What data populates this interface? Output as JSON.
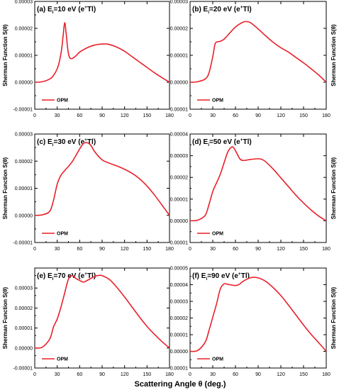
{
  "figure": {
    "xlabel": "Scattering Angle θ (deg.)",
    "ylabel": "Sherman Function S(θ)"
  },
  "chart_data": [
    {
      "type": "line",
      "panel": "a",
      "title_prefix": "(a) E",
      "title_sub": "i",
      "title_mid": "=10 eV (e",
      "title_sup": "+",
      "title_end": "Tl)",
      "legend": "OPM",
      "series_color": "#e8202a",
      "xlim": [
        0,
        180
      ],
      "ylim": [
        -1e-05,
        3e-05
      ],
      "xticks": [
        "0",
        "30",
        "60",
        "90",
        "120",
        "150",
        "180"
      ],
      "yticks": [
        "-0.00001",
        "0.00000",
        "0.00001",
        "0.00002",
        "0.00003"
      ],
      "ylabel_side": "left",
      "x": [
        0,
        10,
        20,
        25,
        30,
        33,
        36,
        38,
        40,
        42,
        44,
        46,
        48,
        50,
        55,
        60,
        70,
        80,
        90,
        95,
        100,
        110,
        120,
        130,
        140,
        150,
        160,
        170,
        180
      ],
      "y": [
        0.0,
        2e-07,
        1.2e-06,
        2.5e-06,
        5e-06,
        7.8e-06,
        1.25e-05,
        1.75e-05,
        2.21e-05,
        1.8e-05,
        1.25e-05,
        9.5e-06,
        8.8e-06,
        8.8e-06,
        9.8e-06,
        1.12e-05,
        1.28e-05,
        1.38e-05,
        1.42e-05,
        1.42e-05,
        1.4e-05,
        1.3e-05,
        1.15e-05,
        9.5e-06,
        7.5e-06,
        5.5e-06,
        3.5e-06,
        1.7e-06,
        0.0
      ]
    },
    {
      "type": "line",
      "panel": "b",
      "title_prefix": "(b) E",
      "title_sub": "i",
      "title_mid": "=20 eV (e",
      "title_sup": "+",
      "title_end": "Tl)",
      "legend": "OPM",
      "series_color": "#e8202a",
      "xlim": [
        0,
        180
      ],
      "ylim": [
        -1e-05,
        3e-05
      ],
      "xticks": [
        "0",
        "30",
        "60",
        "90",
        "120",
        "150",
        "180"
      ],
      "yticks": [
        "-0.00001",
        "0.00000",
        "0.00001",
        "0.00002",
        "0.00003"
      ],
      "ylabel_side": "right",
      "x": [
        0,
        10,
        20,
        25,
        30,
        33,
        36,
        40,
        45,
        50,
        60,
        70,
        75,
        80,
        90,
        100,
        110,
        120,
        130,
        140,
        150,
        160,
        170,
        180
      ],
      "y": [
        0.0,
        2e-07,
        1.2e-06,
        3.5e-06,
        9.5e-06,
        1.42e-05,
        1.5e-05,
        1.52e-05,
        1.6e-05,
        1.75e-05,
        2.05e-05,
        2.23e-05,
        2.25e-05,
        2.21e-05,
        1.98e-05,
        1.72e-05,
        1.48e-05,
        1.28e-05,
        1.12e-05,
        9.2e-06,
        7.2e-06,
        5e-06,
        2.7e-06,
        0.0
      ]
    },
    {
      "type": "line",
      "panel": "c",
      "title_prefix": "(c) E",
      "title_sub": "i",
      "title_mid": "=30 eV (e",
      "title_sup": "+",
      "title_end": "Tl)",
      "legend": "OPM",
      "series_color": "#e8202a",
      "xlim": [
        0,
        180
      ],
      "ylim": [
        -1e-05,
        3e-05
      ],
      "xticks": [
        "0",
        "30",
        "60",
        "90",
        "120",
        "150",
        "180"
      ],
      "yticks": [
        "-0.00001",
        "0.00000",
        "0.00001",
        "0.00002",
        "0.00003"
      ],
      "ylabel_side": "left",
      "x": [
        0,
        10,
        20,
        25,
        30,
        35,
        40,
        50,
        60,
        65,
        70,
        75,
        80,
        90,
        100,
        110,
        120,
        130,
        140,
        150,
        160,
        170,
        180
      ],
      "y": [
        0.0,
        2e-07,
        1.5e-06,
        5.5e-06,
        1.15e-05,
        1.48e-05,
        1.65e-05,
        1.98e-05,
        2.45e-05,
        2.65e-05,
        2.68e-05,
        2.58e-05,
        2.35e-05,
        2.05e-05,
        1.92e-05,
        1.82e-05,
        1.7e-05,
        1.55e-05,
        1.35e-05,
        1.08e-05,
        7.5e-06,
        3.8e-06,
        0.0
      ]
    },
    {
      "type": "line",
      "panel": "d",
      "title_prefix": "(d) E",
      "title_sub": "i",
      "title_mid": "=50 eV (e",
      "title_sup": "+",
      "title_end": "Tl)",
      "legend": "OPM",
      "series_color": "#e8202a",
      "xlim": [
        0,
        180
      ],
      "ylim": [
        -1e-05,
        4e-05
      ],
      "xticks": [
        "0",
        "30",
        "60",
        "90",
        "120",
        "150",
        "180"
      ],
      "yticks": [
        "-0.00001",
        "0.00000",
        "0.00001",
        "0.00002",
        "0.00003",
        "0.00004"
      ],
      "ylabel_side": "right",
      "x": [
        0,
        10,
        20,
        25,
        30,
        35,
        40,
        45,
        50,
        55,
        58,
        62,
        66,
        70,
        75,
        80,
        90,
        95,
        100,
        110,
        120,
        130,
        140,
        150,
        160,
        170,
        180
      ],
      "y": [
        0.0,
        3e-07,
        2.5e-06,
        7.5e-06,
        1.35e-05,
        1.75e-05,
        2.15e-05,
        2.68e-05,
        3.18e-05,
        3.4e-05,
        3.35e-05,
        3.1e-05,
        2.85e-05,
        2.78e-05,
        2.8e-05,
        2.83e-05,
        2.86e-05,
        2.83e-05,
        2.72e-05,
        2.38e-05,
        1.98e-05,
        1.58e-05,
        1.18e-05,
        8.2e-06,
        5e-06,
        2.2e-06,
        0.0
      ]
    },
    {
      "type": "line",
      "panel": "e",
      "title_prefix": "(e) E",
      "title_sub": "i",
      "title_mid": "=70 eV (e",
      "title_sup": "+",
      "title_end": "Tl)",
      "legend": "OPM",
      "series_color": "#e8202a",
      "xlim": [
        0,
        180
      ],
      "ylim": [
        -1e-05,
        4e-05
      ],
      "xticks": [
        "0",
        "30",
        "60",
        "90",
        "120",
        "150",
        "180"
      ],
      "yticks": [
        "-0.00001",
        "0.00000",
        "0.00001",
        "0.00002",
        "0.00003"
      ],
      "ylabel_side": "left",
      "x": [
        0,
        10,
        20,
        25,
        30,
        35,
        40,
        45,
        50,
        55,
        60,
        65,
        70,
        75,
        80,
        85,
        90,
        100,
        110,
        120,
        130,
        140,
        150,
        160,
        170,
        180
      ],
      "y": [
        0.0,
        4e-07,
        4.5e-06,
        1.05e-05,
        1.45e-05,
        2.05e-05,
        2.75e-05,
        3.45e-05,
        3.62e-05,
        3.48e-05,
        3.38e-05,
        3.3e-05,
        3.38e-05,
        3.48e-05,
        3.58e-05,
        3.63e-05,
        3.62e-05,
        3.42e-05,
        3.02e-05,
        2.55e-05,
        2.05e-05,
        1.55e-05,
        1.08e-05,
        6.8e-06,
        3.2e-06,
        0.0
      ]
    },
    {
      "type": "line",
      "panel": "f",
      "title_prefix": "(f) E",
      "title_sub": "i",
      "title_mid": "=90 eV (e",
      "title_sup": "+",
      "title_end": "Tl)",
      "legend": "OPM",
      "series_color": "#e8202a",
      "xlim": [
        0,
        180
      ],
      "ylim": [
        -1e-05,
        5e-05
      ],
      "xticks": [
        "0",
        "30",
        "60",
        "90",
        "120",
        "150",
        "180"
      ],
      "yticks": [
        "-0.00001",
        "0.00000",
        "0.00001",
        "0.00002",
        "0.00003",
        "0.00004",
        "0.00005"
      ],
      "ylabel_side": "right",
      "x": [
        0,
        10,
        20,
        25,
        30,
        35,
        40,
        45,
        50,
        55,
        60,
        65,
        70,
        80,
        90,
        100,
        110,
        120,
        130,
        140,
        150,
        160,
        170,
        180
      ],
      "y": [
        0.0,
        5e-07,
        5.5e-06,
        1.25e-05,
        2.05e-05,
        2.85e-05,
        3.75e-05,
        4.05e-05,
        4.02e-05,
        3.98e-05,
        3.95e-05,
        4.02e-05,
        4.2e-05,
        4.42e-05,
        4.41e-05,
        4.2e-05,
        3.82e-05,
        3.35e-05,
        2.78e-05,
        2.18e-05,
        1.58e-05,
        1.02e-05,
        5.2e-06,
        0.0
      ]
    }
  ]
}
